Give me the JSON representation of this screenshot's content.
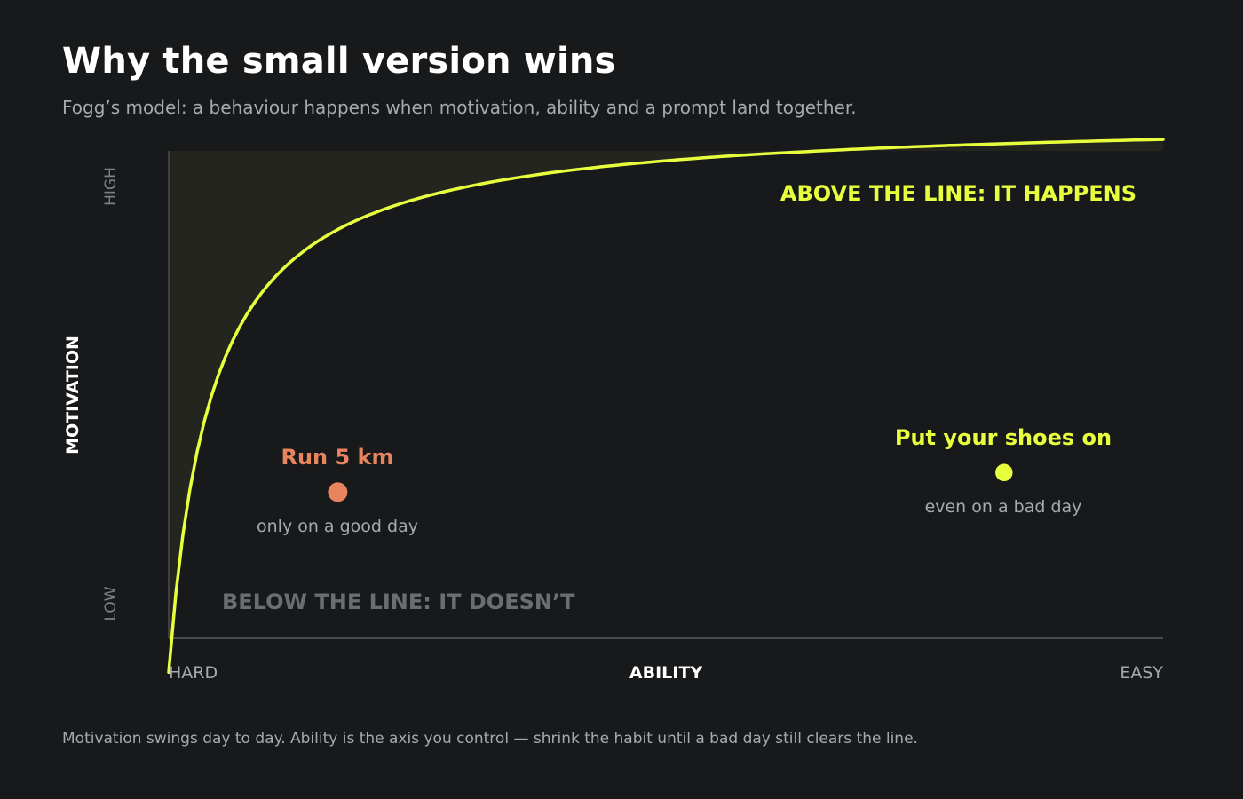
{
  "title": "Why the small version wins",
  "subtitle": "Fogg’s model: a behaviour happens when motivation, ability and a prompt land together.",
  "footnote": "Motivation swings day to day. Ability is the axis you control — shrink the habit until a bad day still clears the line.",
  "axes": {
    "y_label": "MOTIVATION",
    "y_high": "HIGH",
    "y_low": "LOW",
    "x_label": "ABILITY",
    "x_hard": "HARD",
    "x_easy": "EASY"
  },
  "regions": {
    "above": "ABOVE THE LINE: IT HAPPENS",
    "below": "BELOW THE LINE: IT DOESN’T"
  },
  "points": {
    "run": {
      "label": "Run 5 km",
      "note": "only on a good day",
      "ability": 0.17,
      "motivation": 0.3
    },
    "shoes": {
      "label": "Put your shoes on",
      "note": "even on a bad day",
      "ability": 0.84,
      "motivation": 0.34
    }
  },
  "colors": {
    "background": "#17191b",
    "above_region": "#24251f",
    "curve": "#e8ff3d",
    "run_point": "#e8845e",
    "shoes_point": "#e8ff3d",
    "axis": "#5a5c5f",
    "muted_text": "#a7a9ac",
    "below_label": "#6b6d70"
  }
}
